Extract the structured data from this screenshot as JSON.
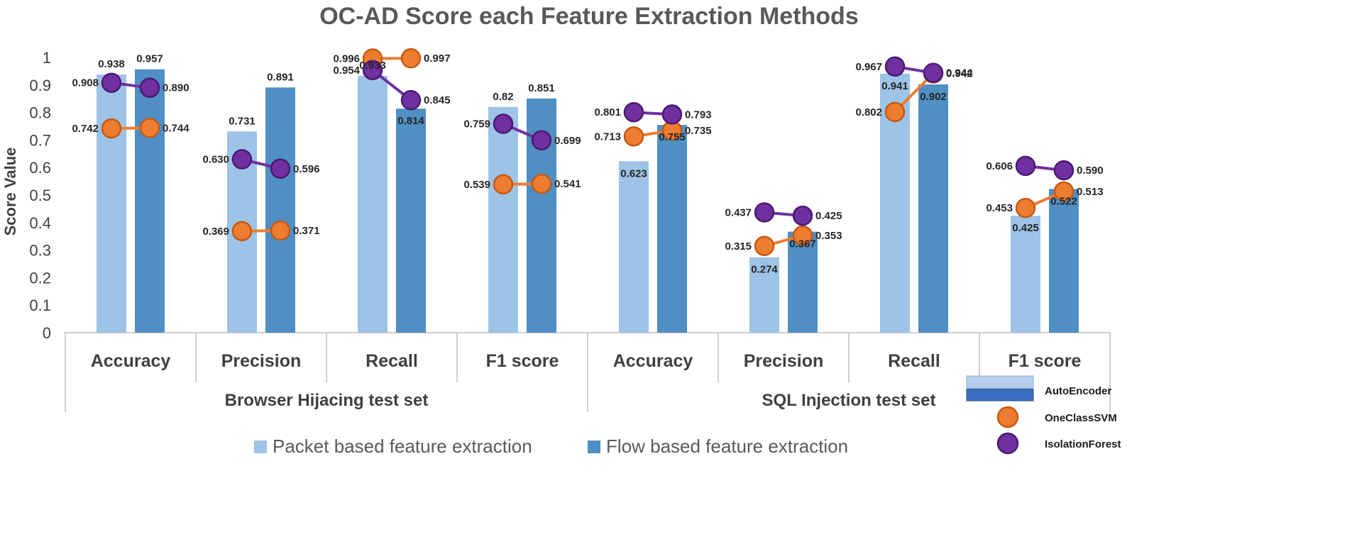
{
  "chart_data": {
    "type": "bar",
    "title": "OC-AD Score each Feature Extraction Methods",
    "xlabel": "",
    "ylabel": "Score Value",
    "ylim": [
      0,
      1
    ],
    "yticks": [
      "0",
      "0.1",
      "0.2",
      "0.3",
      "0.4",
      "0.5",
      "0.6",
      "0.7",
      "0.8",
      "0.9",
      "1"
    ],
    "grid": false,
    "groups": [
      {
        "name": "Browser Hijacing test set",
        "categories": [
          "Accuracy",
          "Precision",
          "Recall",
          "F1 score"
        ],
        "bar_series": [
          {
            "name": "Packet based feature extraction",
            "values": [
              0.938,
              0.731,
              0.933,
              0.82
            ],
            "labels": [
              "0.938",
              "0.731",
              "0.933",
              "0.82"
            ]
          },
          {
            "name": "Flow based feature extraction",
            "values": [
              0.957,
              0.891,
              0.814,
              0.851
            ],
            "labels": [
              "0.957",
              "0.891",
              "0.814",
              "0.851"
            ]
          }
        ],
        "line_series": [
          {
            "name": "OneClassSVM",
            "values": [
              [
                0.742,
                0.744
              ],
              [
                0.369,
                0.371
              ],
              [
                0.996,
                0.997
              ],
              [
                0.539,
                0.541
              ]
            ],
            "labels": [
              [
                "0.742",
                "0.744"
              ],
              [
                "0.369",
                "0.371"
              ],
              [
                "0.996",
                "0.997"
              ],
              [
                "0.539",
                "0.541"
              ]
            ]
          },
          {
            "name": "IsolationForest",
            "values": [
              [
                0.908,
                0.89
              ],
              [
                0.63,
                0.596
              ],
              [
                0.954,
                0.845
              ],
              [
                0.759,
                0.699
              ]
            ],
            "labels": [
              [
                "0.908",
                "0.890"
              ],
              [
                "0.630",
                "0.596"
              ],
              [
                "0.954",
                "0.845"
              ],
              [
                "0.759",
                "0.699"
              ]
            ]
          }
        ]
      },
      {
        "name": "SQL Injection test set",
        "categories": [
          "Accuracy",
          "Precision",
          "Recall",
          "F1 score"
        ],
        "bar_series": [
          {
            "name": "Packet based feature extraction",
            "values": [
              0.623,
              0.274,
              0.941,
              0.425
            ],
            "labels": [
              "0.623",
              "0.274",
              "0.941",
              "0.425"
            ]
          },
          {
            "name": "Flow based feature extraction",
            "values": [
              0.755,
              0.367,
              0.902,
              0.522
            ],
            "labels": [
              "0.755",
              "0.367",
              "0.902",
              "0.522"
            ]
          }
        ],
        "line_series": [
          {
            "name": "OneClassSVM",
            "values": [
              [
                0.713,
                0.735
              ],
              [
                0.315,
                0.353
              ],
              [
                0.802,
                0.942
              ],
              [
                0.453,
                0.513
              ]
            ],
            "labels": [
              [
                "0.713",
                "0.735"
              ],
              [
                "0.315",
                "0.353"
              ],
              [
                "0.802",
                "0.942"
              ],
              [
                "0.453",
                "0.513"
              ]
            ]
          },
          {
            "name": "IsolationForest",
            "values": [
              [
                0.801,
                0.793
              ],
              [
                0.437,
                0.425
              ],
              [
                0.967,
                0.944
              ],
              [
                0.606,
                0.59
              ]
            ],
            "labels": [
              [
                "0.801",
                "0.793"
              ],
              [
                "0.437",
                "0.425"
              ],
              [
                "0.967",
                "0.944"
              ],
              [
                "0.606",
                "0.590"
              ]
            ]
          }
        ]
      }
    ],
    "legend_bottom": [
      "Packet based feature extraction",
      "Flow based feature extraction"
    ],
    "legend_side": [
      "AutoEncoder",
      "OneClassSVM",
      "IsolationForest"
    ],
    "colors": {
      "packet": "#9dc3e6",
      "flow": "#4f8fc4",
      "autoencoder_light": "#b4cfeb",
      "autoencoder_dark": "#3a6fbf",
      "ocsvm": "#ed7d31",
      "ocsvm_border": "#c55a11",
      "iforest": "#7030a0",
      "iforest_border": "#4b1a73",
      "axis": "#bfbfbf",
      "ocsvm_label": "#ed7d31",
      "iforest_label": "#7030a0"
    }
  }
}
